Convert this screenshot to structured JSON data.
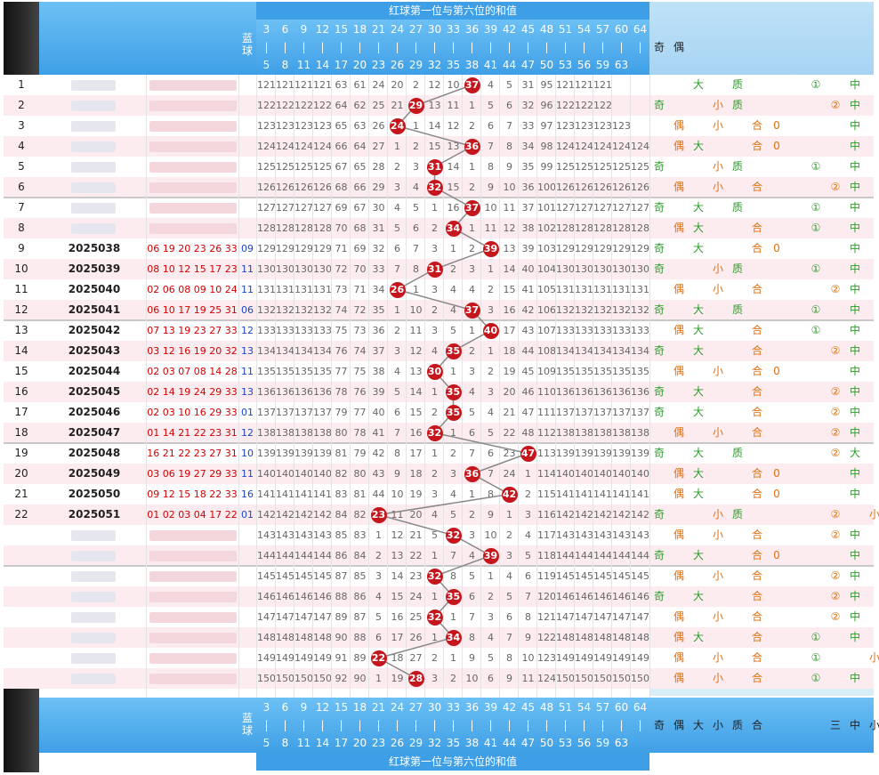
{
  "header": {
    "title": "红球第一位与第六位的和值",
    "blue_label": "蓝球",
    "col_tops": [
      "3",
      "6",
      "9",
      "12",
      "15",
      "18",
      "21",
      "24",
      "27",
      "30",
      "33",
      "36",
      "39",
      "42",
      "45",
      "48",
      "51",
      "54",
      "57",
      "60",
      "64"
    ],
    "col_bottoms": [
      "5",
      "8",
      "11",
      "14",
      "17",
      "20",
      "23",
      "26",
      "29",
      "32",
      "35",
      "38",
      "41",
      "44",
      "47",
      "50",
      "53",
      "56",
      "59",
      "63",
      ""
    ],
    "right_labels": [
      "奇",
      "偶",
      "大",
      "小",
      "质",
      "合",
      "0",
      "1",
      "2",
      "三",
      "中",
      "小"
    ]
  },
  "rows": [
    {
      "no": "1",
      "issue": "",
      "reds": "",
      "blue": "",
      "vals": [
        "121",
        "121",
        "121",
        "121",
        "63",
        "61",
        "24",
        "20",
        "2",
        "12",
        "10",
        "37",
        "4",
        "5",
        "31",
        "95",
        "121",
        "121",
        "121",
        "",
        ""
      ],
      "ball": "37"
    },
    {
      "no": "2",
      "issue": "",
      "reds": "",
      "blue": "",
      "vals": [
        "122",
        "122",
        "122",
        "122",
        "64",
        "62",
        "25",
        "21",
        "29",
        "13",
        "11",
        "1",
        "5",
        "6",
        "32",
        "96",
        "122",
        "122",
        "122",
        "",
        ""
      ],
      "ball": "29"
    },
    {
      "no": "3",
      "issue": "",
      "reds": "",
      "blue": "",
      "vals": [
        "123",
        "123",
        "123",
        "123",
        "65",
        "63",
        "26",
        "24",
        "1",
        "14",
        "12",
        "2",
        "6",
        "7",
        "33",
        "97",
        "123",
        "123",
        "123",
        "123",
        ""
      ],
      "ball": "24"
    },
    {
      "no": "4",
      "issue": "",
      "reds": "",
      "blue": "",
      "vals": [
        "124",
        "124",
        "124",
        "124",
        "66",
        "64",
        "27",
        "1",
        "2",
        "15",
        "13",
        "36",
        "7",
        "8",
        "34",
        "98",
        "124",
        "124",
        "124",
        "124",
        "124"
      ],
      "ball": "36"
    },
    {
      "no": "5",
      "issue": "",
      "reds": "",
      "blue": "",
      "vals": [
        "125",
        "125",
        "125",
        "125",
        "67",
        "65",
        "28",
        "2",
        "3",
        "31",
        "14",
        "1",
        "8",
        "9",
        "35",
        "99",
        "125",
        "125",
        "125",
        "125",
        "125"
      ],
      "ball": "31"
    },
    {
      "no": "6",
      "issue": "",
      "reds": "",
      "blue": "",
      "vals": [
        "126",
        "126",
        "126",
        "126",
        "68",
        "66",
        "29",
        "3",
        "4",
        "32",
        "15",
        "2",
        "9",
        "10",
        "36",
        "100",
        "126",
        "126",
        "126",
        "126",
        "126"
      ],
      "ball": "32"
    },
    {
      "no": "7",
      "issue": "",
      "reds": "",
      "blue": "",
      "vals": [
        "127",
        "127",
        "127",
        "127",
        "69",
        "67",
        "30",
        "4",
        "5",
        "1",
        "16",
        "37",
        "10",
        "11",
        "37",
        "101",
        "127",
        "127",
        "127",
        "127",
        "127"
      ],
      "ball": "37"
    },
    {
      "no": "8",
      "issue": "",
      "reds": "",
      "blue": "",
      "vals": [
        "128",
        "128",
        "128",
        "128",
        "70",
        "68",
        "31",
        "5",
        "6",
        "2",
        "34",
        "1",
        "11",
        "12",
        "38",
        "102",
        "128",
        "128",
        "128",
        "128",
        "128"
      ],
      "ball": "34"
    },
    {
      "no": "9",
      "issue": "2025038",
      "reds": "06 19 20 23 26 33",
      "blue": "09",
      "vals": [
        "129",
        "129",
        "129",
        "129",
        "71",
        "69",
        "32",
        "6",
        "7",
        "3",
        "1",
        "2",
        "39",
        "13",
        "39",
        "103",
        "129",
        "129",
        "129",
        "129",
        "129"
      ],
      "ball": "39"
    },
    {
      "no": "10",
      "issue": "2025039",
      "reds": "08 10 12 15 17 23",
      "blue": "11",
      "vals": [
        "130",
        "130",
        "130",
        "130",
        "72",
        "70",
        "33",
        "7",
        "8",
        "31",
        "2",
        "3",
        "1",
        "14",
        "40",
        "104",
        "130",
        "130",
        "130",
        "130",
        "130"
      ],
      "ball": "31"
    },
    {
      "no": "11",
      "issue": "2025040",
      "reds": "02 06 08 09 10 24",
      "blue": "11",
      "vals": [
        "131",
        "131",
        "131",
        "131",
        "73",
        "71",
        "34",
        "26",
        "1",
        "3",
        "4",
        "4",
        "2",
        "15",
        "41",
        "105",
        "131",
        "131",
        "131",
        "131",
        "131"
      ],
      "ball": "26"
    },
    {
      "no": "12",
      "issue": "2025041",
      "reds": "06 10 17 19 25 31",
      "blue": "06",
      "vals": [
        "132",
        "132",
        "132",
        "132",
        "74",
        "72",
        "35",
        "1",
        "10",
        "2",
        "4",
        "37",
        "3",
        "16",
        "42",
        "106",
        "132",
        "132",
        "132",
        "132",
        "132"
      ],
      "ball": "37"
    },
    {
      "no": "13",
      "issue": "2025042",
      "reds": "07 13 19 23 27 33",
      "blue": "12",
      "vals": [
        "133",
        "133",
        "133",
        "133",
        "75",
        "73",
        "36",
        "2",
        "11",
        "3",
        "5",
        "1",
        "40",
        "17",
        "43",
        "107",
        "133",
        "133",
        "133",
        "133",
        "133"
      ],
      "ball": "40"
    },
    {
      "no": "14",
      "issue": "2025043",
      "reds": "03 12 16 19 20 32",
      "blue": "13",
      "vals": [
        "134",
        "134",
        "134",
        "134",
        "76",
        "74",
        "37",
        "3",
        "12",
        "4",
        "35",
        "2",
        "1",
        "18",
        "44",
        "108",
        "134",
        "134",
        "134",
        "134",
        "134"
      ],
      "ball": "35"
    },
    {
      "no": "15",
      "issue": "2025044",
      "reds": "02 03 07 08 14 28",
      "blue": "11",
      "vals": [
        "135",
        "135",
        "135",
        "135",
        "77",
        "75",
        "38",
        "4",
        "13",
        "30",
        "1",
        "3",
        "2",
        "19",
        "45",
        "109",
        "135",
        "135",
        "135",
        "135",
        "135"
      ],
      "ball": "30"
    },
    {
      "no": "16",
      "issue": "2025045",
      "reds": "02 14 19 24 29 33",
      "blue": "13",
      "vals": [
        "136",
        "136",
        "136",
        "136",
        "78",
        "76",
        "39",
        "5",
        "14",
        "1",
        "35",
        "4",
        "3",
        "20",
        "46",
        "110",
        "136",
        "136",
        "136",
        "136",
        "136"
      ],
      "ball": "35"
    },
    {
      "no": "17",
      "issue": "2025046",
      "reds": "02 03 10 16 29 33",
      "blue": "01",
      "vals": [
        "137",
        "137",
        "137",
        "137",
        "79",
        "77",
        "40",
        "6",
        "15",
        "2",
        "35",
        "5",
        "4",
        "21",
        "47",
        "111",
        "137",
        "137",
        "137",
        "137",
        "137"
      ],
      "ball": "35"
    },
    {
      "no": "18",
      "issue": "2025047",
      "reds": "01 14 21 22 23 31",
      "blue": "12",
      "vals": [
        "138",
        "138",
        "138",
        "138",
        "80",
        "78",
        "41",
        "7",
        "16",
        "32",
        "1",
        "6",
        "5",
        "22",
        "48",
        "112",
        "138",
        "138",
        "138",
        "138",
        "138"
      ],
      "ball": "32"
    },
    {
      "no": "19",
      "issue": "2025048",
      "reds": "16 21 22 23 27 31",
      "blue": "10",
      "vals": [
        "139",
        "139",
        "139",
        "139",
        "81",
        "79",
        "42",
        "8",
        "17",
        "1",
        "2",
        "7",
        "6",
        "23",
        "47",
        "113",
        "139",
        "139",
        "139",
        "139",
        "139"
      ],
      "ball": "47"
    },
    {
      "no": "20",
      "issue": "2025049",
      "reds": "03 06 19 27 29 33",
      "blue": "11",
      "vals": [
        "140",
        "140",
        "140",
        "140",
        "82",
        "80",
        "43",
        "9",
        "18",
        "2",
        "3",
        "36",
        "7",
        "24",
        "1",
        "114",
        "140",
        "140",
        "140",
        "140",
        "140"
      ],
      "ball": "36"
    },
    {
      "no": "21",
      "issue": "2025050",
      "reds": "09 12 15 18 22 33",
      "blue": "16",
      "vals": [
        "141",
        "141",
        "141",
        "141",
        "83",
        "81",
        "44",
        "10",
        "19",
        "3",
        "4",
        "1",
        "8",
        "42",
        "2",
        "115",
        "141",
        "141",
        "141",
        "141",
        "141"
      ],
      "ball": "42"
    },
    {
      "no": "22",
      "issue": "2025051",
      "reds": "01 02 03 04 17 22",
      "blue": "01",
      "vals": [
        "142",
        "142",
        "142",
        "142",
        "84",
        "82",
        "23",
        "11",
        "20",
        "4",
        "5",
        "2",
        "9",
        "1",
        "3",
        "116",
        "142",
        "142",
        "142",
        "142",
        "142"
      ],
      "ball": "23"
    },
    {
      "no": "",
      "issue": "",
      "reds": "",
      "blue": "",
      "vals": [
        "143",
        "143",
        "143",
        "143",
        "85",
        "83",
        "1",
        "12",
        "21",
        "5",
        "32",
        "3",
        "10",
        "2",
        "4",
        "117",
        "143",
        "143",
        "143",
        "143",
        "143"
      ],
      "ball": "32"
    },
    {
      "no": "",
      "issue": "",
      "reds": "",
      "blue": "",
      "vals": [
        "144",
        "144",
        "144",
        "144",
        "86",
        "84",
        "2",
        "13",
        "22",
        "1",
        "7",
        "4",
        "39",
        "3",
        "5",
        "118",
        "144",
        "144",
        "144",
        "144",
        "144"
      ],
      "ball": "39"
    },
    {
      "no": "",
      "issue": "",
      "reds": "",
      "blue": "",
      "vals": [
        "145",
        "145",
        "145",
        "145",
        "87",
        "85",
        "3",
        "14",
        "23",
        "32",
        "8",
        "5",
        "1",
        "4",
        "6",
        "119",
        "145",
        "145",
        "145",
        "145",
        "145"
      ],
      "ball": "32"
    },
    {
      "no": "",
      "issue": "",
      "reds": "",
      "blue": "",
      "vals": [
        "146",
        "146",
        "146",
        "146",
        "88",
        "86",
        "4",
        "15",
        "24",
        "1",
        "35",
        "6",
        "2",
        "5",
        "7",
        "120",
        "146",
        "146",
        "146",
        "146",
        "146"
      ],
      "ball": "35"
    },
    {
      "no": "",
      "issue": "",
      "reds": "",
      "blue": "",
      "vals": [
        "147",
        "147",
        "147",
        "147",
        "89",
        "87",
        "5",
        "16",
        "25",
        "32",
        "1",
        "7",
        "3",
        "6",
        "8",
        "121",
        "147",
        "147",
        "147",
        "147",
        "147"
      ],
      "ball": "32"
    },
    {
      "no": "",
      "issue": "",
      "reds": "",
      "blue": "",
      "vals": [
        "148",
        "148",
        "148",
        "148",
        "90",
        "88",
        "6",
        "17",
        "26",
        "1",
        "34",
        "8",
        "4",
        "7",
        "9",
        "122",
        "148",
        "148",
        "148",
        "148",
        "148"
      ],
      "ball": "34"
    },
    {
      "no": "",
      "issue": "",
      "reds": "",
      "blue": "",
      "vals": [
        "149",
        "149",
        "149",
        "149",
        "91",
        "89",
        "22",
        "18",
        "27",
        "2",
        "1",
        "9",
        "5",
        "8",
        "10",
        "123",
        "149",
        "149",
        "149",
        "149",
        "149"
      ],
      "ball": "22"
    },
    {
      "no": "",
      "issue": "",
      "reds": "",
      "blue": "",
      "vals": [
        "150",
        "150",
        "150",
        "150",
        "92",
        "90",
        "1",
        "19",
        "28",
        "3",
        "2",
        "10",
        "6",
        "9",
        "11",
        "124",
        "150",
        "150",
        "150",
        "150",
        "150"
      ],
      "ball": "28"
    }
  ],
  "right": [
    [
      "",
      "",
      "大",
      "",
      "质",
      "",
      "",
      "",
      "①",
      "",
      "中",
      ""
    ],
    [
      "奇",
      "",
      "",
      "小",
      "质",
      "",
      "",
      "",
      "",
      "②",
      "中",
      ""
    ],
    [
      "",
      "偶",
      "",
      "小",
      "",
      "合",
      "0",
      "",
      "",
      "",
      "中",
      ""
    ],
    [
      "",
      "偶",
      "大",
      "",
      "",
      "合",
      "0",
      "",
      "",
      "",
      "中",
      ""
    ],
    [
      "奇",
      "",
      "",
      "小",
      "质",
      "",
      "",
      "",
      "①",
      "",
      "中",
      ""
    ],
    [
      "",
      "偶",
      "",
      "小",
      "",
      "合",
      "",
      "",
      "",
      "②",
      "中",
      ""
    ],
    [
      "奇",
      "",
      "大",
      "",
      "质",
      "",
      "",
      "",
      "①",
      "",
      "中",
      ""
    ],
    [
      "",
      "偶",
      "大",
      "",
      "",
      "合",
      "",
      "",
      "①",
      "",
      "中",
      ""
    ],
    [
      "奇",
      "",
      "大",
      "",
      "",
      "合",
      "0",
      "",
      "",
      "",
      "中",
      ""
    ],
    [
      "奇",
      "",
      "",
      "小",
      "质",
      "",
      "",
      "",
      "①",
      "",
      "中",
      ""
    ],
    [
      "",
      "偶",
      "",
      "小",
      "",
      "合",
      "",
      "",
      "",
      "②",
      "中",
      ""
    ],
    [
      "奇",
      "",
      "大",
      "",
      "质",
      "",
      "",
      "",
      "①",
      "",
      "中",
      ""
    ],
    [
      "",
      "偶",
      "大",
      "",
      "",
      "合",
      "",
      "",
      "①",
      "",
      "中",
      ""
    ],
    [
      "奇",
      "",
      "大",
      "",
      "",
      "合",
      "",
      "",
      "",
      "②",
      "中",
      ""
    ],
    [
      "",
      "偶",
      "",
      "小",
      "",
      "合",
      "0",
      "",
      "",
      "",
      "中",
      ""
    ],
    [
      "奇",
      "",
      "大",
      "",
      "",
      "合",
      "",
      "",
      "",
      "②",
      "中",
      ""
    ],
    [
      "奇",
      "",
      "大",
      "",
      "",
      "合",
      "",
      "",
      "",
      "②",
      "中",
      ""
    ],
    [
      "",
      "偶",
      "",
      "小",
      "",
      "合",
      "",
      "",
      "",
      "②",
      "中",
      ""
    ],
    [
      "奇",
      "",
      "大",
      "",
      "质",
      "",
      "",
      "",
      "",
      "②",
      "大",
      ""
    ],
    [
      "",
      "偶",
      "大",
      "",
      "",
      "合",
      "0",
      "",
      "",
      "",
      "中",
      ""
    ],
    [
      "",
      "偶",
      "大",
      "",
      "",
      "合",
      "0",
      "",
      "",
      "",
      "中",
      ""
    ],
    [
      "奇",
      "",
      "",
      "小",
      "质",
      "",
      "",
      "",
      "",
      "②",
      "",
      "小"
    ],
    [
      "",
      "偶",
      "",
      "小",
      "",
      "合",
      "",
      "",
      "",
      "②",
      "中",
      ""
    ],
    [
      "奇",
      "",
      "大",
      "",
      "",
      "合",
      "0",
      "",
      "",
      "",
      "中",
      ""
    ],
    [
      "",
      "偶",
      "",
      "小",
      "",
      "合",
      "",
      "",
      "",
      "②",
      "中",
      ""
    ],
    [
      "奇",
      "",
      "大",
      "",
      "",
      "合",
      "",
      "",
      "",
      "②",
      "中",
      ""
    ],
    [
      "",
      "偶",
      "",
      "小",
      "",
      "合",
      "",
      "",
      "",
      "②",
      "中",
      ""
    ],
    [
      "",
      "偶",
      "大",
      "",
      "",
      "合",
      "",
      "",
      "①",
      "",
      "中",
      ""
    ],
    [
      "",
      "偶",
      "",
      "小",
      "",
      "合",
      "",
      "",
      "①",
      "",
      "",
      "小"
    ],
    [
      "",
      "偶",
      "",
      "小",
      "",
      "合",
      "",
      "",
      "①",
      "",
      "中",
      ""
    ]
  ],
  "footer": {
    "title": "红球第一位与第六位的和值",
    "blue_label": "蓝球",
    "right_labels": [
      "奇",
      "偶",
      "大",
      "小",
      "质",
      "合",
      "",
      "",
      "",
      "三",
      "中",
      "小"
    ]
  }
}
